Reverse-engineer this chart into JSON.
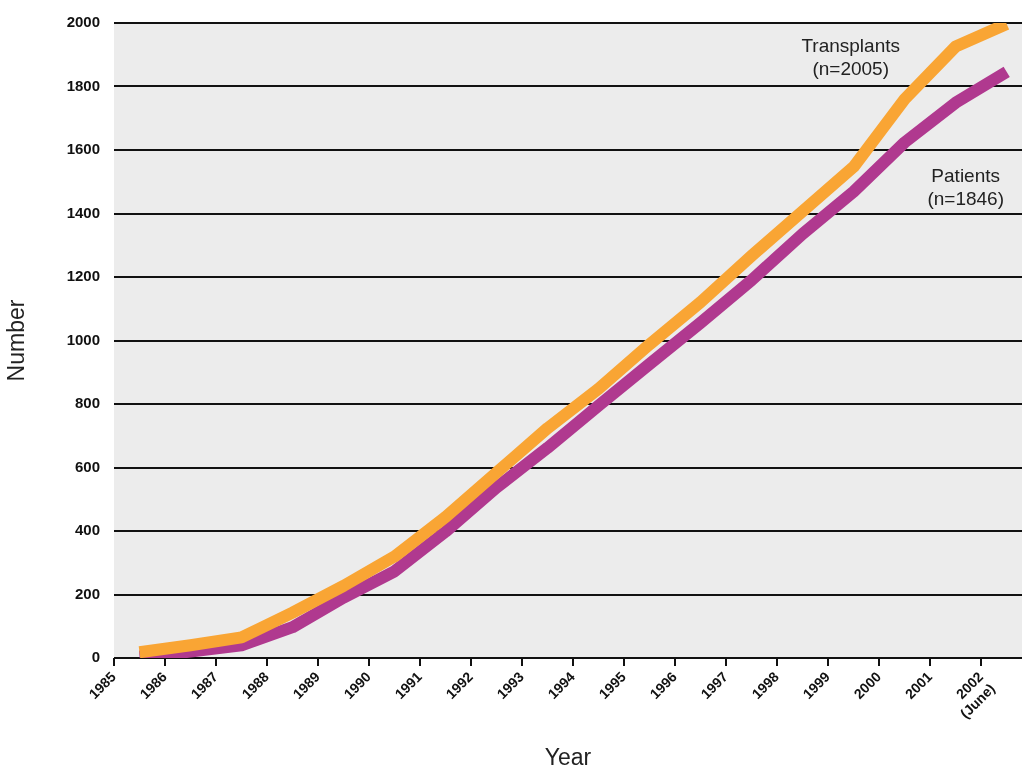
{
  "chart_data": {
    "type": "line",
    "xlabel": "Year",
    "ylabel": "Number",
    "x": [
      1985.5,
      1986.5,
      1987.5,
      1988.5,
      1989.5,
      1990.5,
      1991.5,
      1992.5,
      1993.5,
      1994.5,
      1995.5,
      1996.5,
      1997.5,
      1998.5,
      1999.5,
      2000.5,
      2001.5,
      2002.5
    ],
    "series": [
      {
        "name": "Transplants\n(n=2005)",
        "color": "#f9a534",
        "values": [
          18,
          40,
          65,
          143,
          227,
          320,
          444,
          584,
          724,
          848,
          988,
          1121,
          1267,
          1407,
          1547,
          1760,
          1926,
          1997
        ]
      },
      {
        "name": "Patients\n(n=1846)",
        "color": "#b0398f",
        "values": [
          5,
          20,
          40,
          97,
          190,
          273,
          398,
          537,
          662,
          795,
          926,
          1056,
          1190,
          1336,
          1469,
          1624,
          1749,
          1846
        ]
      }
    ],
    "xlim": [
      1985,
      2002.8
    ],
    "xticks": [
      1985,
      1986,
      1987,
      1988,
      1989,
      1990,
      1991,
      1992,
      1993,
      1994,
      1995,
      1996,
      1997,
      1998,
      1999,
      2000,
      2001,
      {
        "value": 2002,
        "label": "2002\n(June)"
      }
    ],
    "ylim": [
      0,
      2000
    ],
    "yticks": [
      0,
      200,
      400,
      600,
      800,
      1000,
      1200,
      1400,
      1600,
      1800,
      2000
    ],
    "grid": "y",
    "marker": "none"
  }
}
